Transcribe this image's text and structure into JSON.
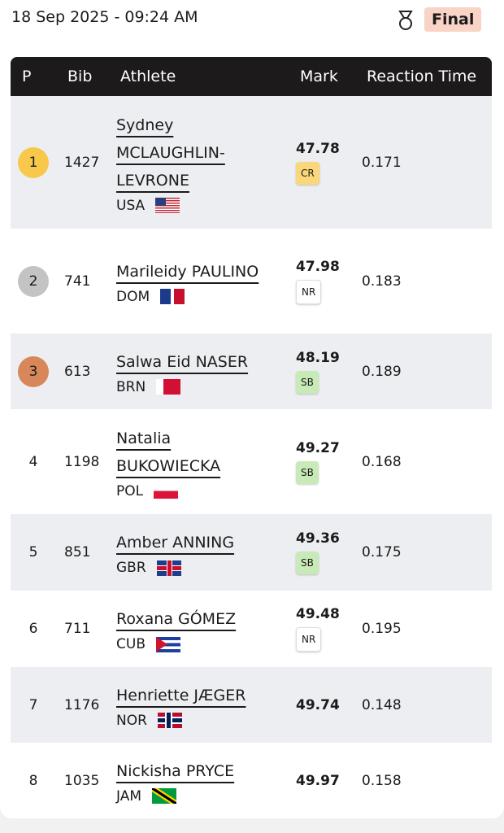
{
  "header": {
    "date": "18 Sep 2025 - 09:24 AM",
    "status": "Final"
  },
  "table": {
    "columns": [
      "P",
      "Bib",
      "Athlete",
      "Mark",
      "Reaction Time"
    ],
    "rows": [
      {
        "position": "1",
        "bib": "1427",
        "athlete": "Sydney MCLAUGHLIN-LEVRONE",
        "country": "USA",
        "mark": "47.78",
        "record": "CR",
        "reaction_time": "0.171"
      },
      {
        "position": "2",
        "bib": "741",
        "athlete": "Marileidy PAULINO",
        "country": "DOM",
        "mark": "47.98",
        "record": "NR",
        "reaction_time": "0.183"
      },
      {
        "position": "3",
        "bib": "613",
        "athlete": "Salwa Eid NASER",
        "country": "BRN",
        "mark": "48.19",
        "record": "SB",
        "reaction_time": "0.189"
      },
      {
        "position": "4",
        "bib": "1198",
        "athlete": "Natalia BUKOWIECKA",
        "country": "POL",
        "mark": "49.27",
        "record": "SB",
        "reaction_time": "0.168"
      },
      {
        "position": "5",
        "bib": "851",
        "athlete": "Amber ANNING",
        "country": "GBR",
        "mark": "49.36",
        "record": "SB",
        "reaction_time": "0.175"
      },
      {
        "position": "6",
        "bib": "711",
        "athlete": "Roxana GÓMEZ",
        "country": "CUB",
        "mark": "49.48",
        "record": "NR",
        "reaction_time": "0.195"
      },
      {
        "position": "7",
        "bib": "1176",
        "athlete": "Henriette JÆGER",
        "country": "NOR",
        "mark": "49.74",
        "reaction_time": "0.148"
      },
      {
        "position": "8",
        "bib": "1035",
        "athlete": "Nickisha PRYCE",
        "country": "JAM",
        "mark": "49.97",
        "reaction_time": "0.158"
      }
    ]
  }
}
